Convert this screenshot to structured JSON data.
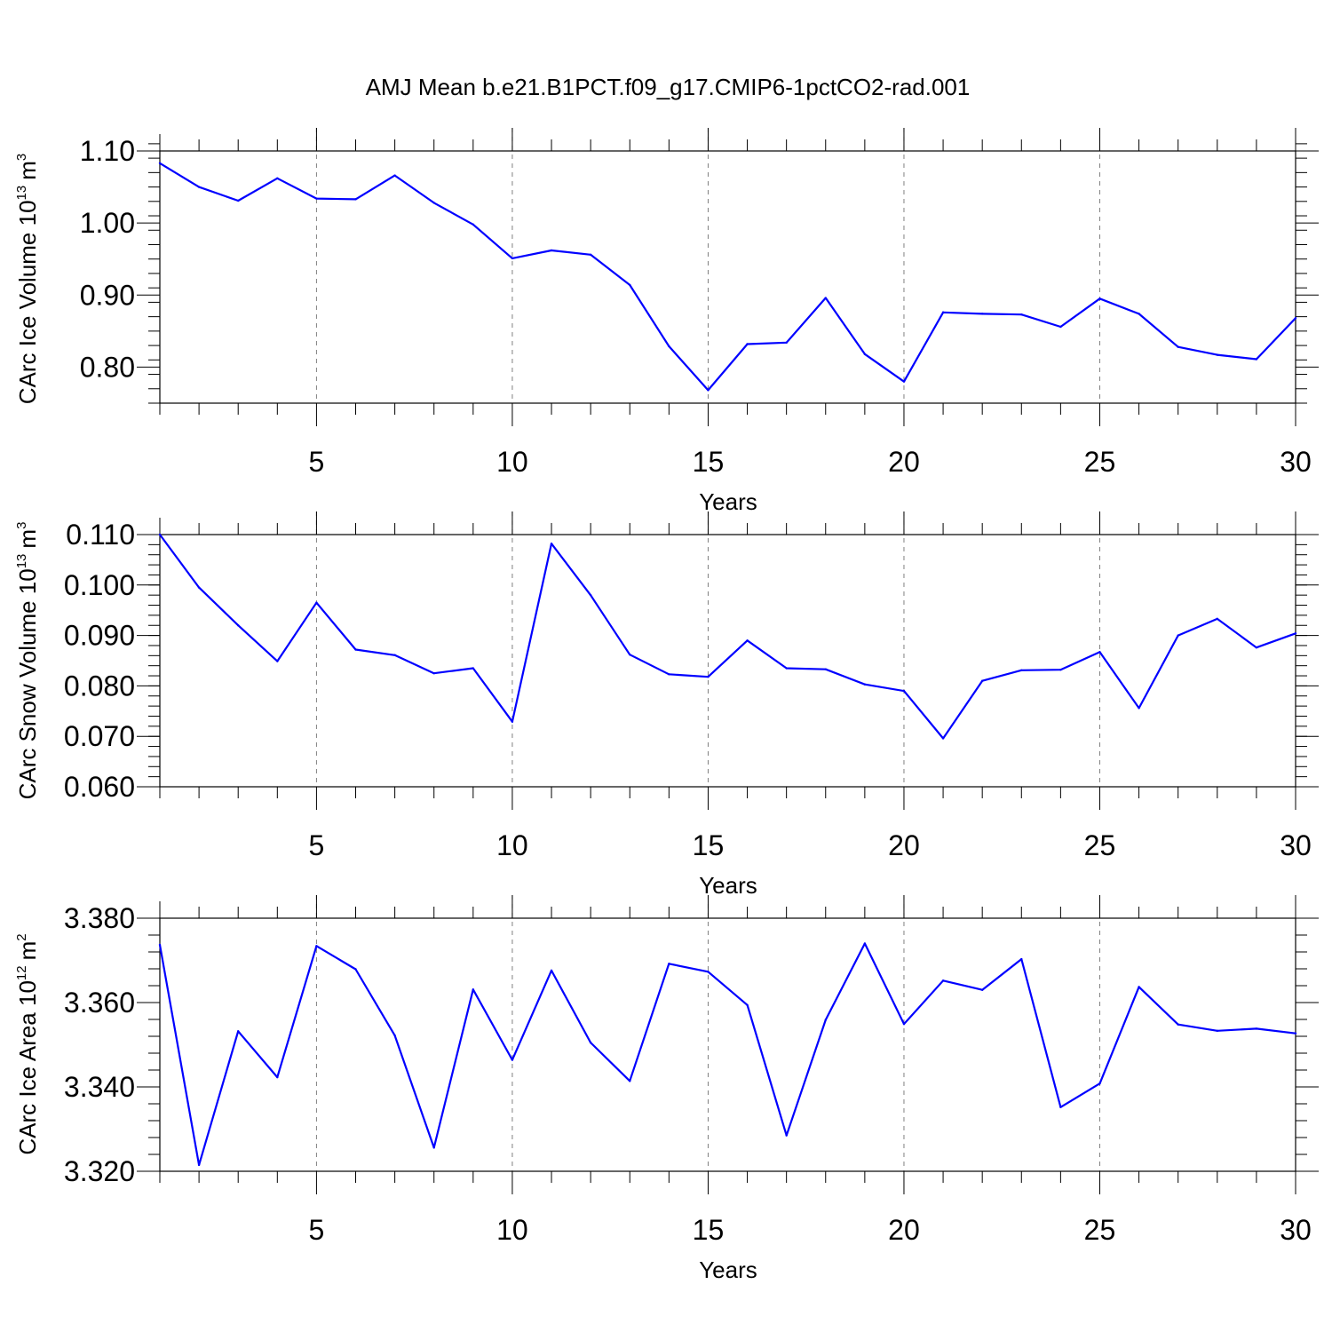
{
  "title": "AMJ Mean b.e21.B1PCT.f09_g17.CMIP6-1pctCO2-rad.001",
  "colors": {
    "line": "#0000ff",
    "grid": "#808080",
    "axes": "#000000"
  },
  "chart_data": [
    {
      "type": "line",
      "ylabel": "CArc Ice Volume 10",
      "ylabel_exponent": "13",
      "ylabel_unit": "m",
      "ylabel_unit_exponent": "3",
      "xlabel": "Years",
      "xlim": [
        1,
        30
      ],
      "ylim": [
        0.75,
        1.1
      ],
      "xticks": [
        5,
        10,
        15,
        20,
        25,
        30
      ],
      "xtick_labels": [
        "5",
        "10",
        "15",
        "20",
        "25",
        "30"
      ],
      "yticks": [
        0.8,
        0.9,
        1.0,
        1.1
      ],
      "ytick_labels": [
        "0.80",
        "0.90",
        "1.00",
        "1.10"
      ],
      "y_minor_step": 0.02,
      "grid": "dashed vertical lines at major x ticks",
      "x": [
        1,
        2,
        3,
        4,
        5,
        6,
        7,
        8,
        9,
        10,
        11,
        12,
        13,
        14,
        15,
        16,
        17,
        18,
        19,
        20,
        21,
        22,
        23,
        24,
        25,
        26,
        27,
        28,
        29,
        30
      ],
      "series": [
        {
          "values": [
            1.083,
            1.05,
            1.031,
            1.062,
            1.034,
            1.033,
            1.066,
            1.028,
            0.998,
            0.951,
            0.962,
            0.956,
            0.914,
            0.829,
            0.768,
            0.832,
            0.834,
            0.896,
            0.818,
            0.78,
            0.876,
            0.874,
            0.873,
            0.856,
            0.895,
            0.874,
            0.828,
            0.817,
            0.811,
            0.868
          ]
        }
      ]
    },
    {
      "type": "line",
      "ylabel": "CArc Snow Volume 10",
      "ylabel_exponent": "13",
      "ylabel_unit": "m",
      "ylabel_unit_exponent": "3",
      "xlabel": "Years",
      "xlim": [
        1,
        30
      ],
      "ylim": [
        0.06,
        0.11
      ],
      "xticks": [
        5,
        10,
        15,
        20,
        25,
        30
      ],
      "xtick_labels": [
        "5",
        "10",
        "15",
        "20",
        "25",
        "30"
      ],
      "yticks": [
        0.06,
        0.07,
        0.08,
        0.09,
        0.1,
        0.11
      ],
      "ytick_labels": [
        "0.060",
        "0.070",
        "0.080",
        "0.090",
        "0.100",
        "0.110"
      ],
      "y_minor_step": 0.002,
      "grid": "dashed vertical lines at major x ticks",
      "x": [
        1,
        2,
        3,
        4,
        5,
        6,
        7,
        8,
        9,
        10,
        11,
        12,
        13,
        14,
        15,
        16,
        17,
        18,
        19,
        20,
        21,
        22,
        23,
        24,
        25,
        26,
        27,
        28,
        29,
        30
      ],
      "series": [
        {
          "values": [
            0.11,
            0.0995,
            0.092,
            0.0849,
            0.0965,
            0.0872,
            0.0861,
            0.0825,
            0.0835,
            0.0729,
            0.1082,
            0.098,
            0.0862,
            0.0823,
            0.0818,
            0.089,
            0.0835,
            0.0833,
            0.0803,
            0.079,
            0.0696,
            0.081,
            0.0831,
            0.0832,
            0.0867,
            0.0756,
            0.09,
            0.0933,
            0.0876,
            0.0904
          ]
        }
      ]
    },
    {
      "type": "line",
      "ylabel": "CArc Ice Area 10",
      "ylabel_exponent": "12",
      "ylabel_unit": "m",
      "ylabel_unit_exponent": "2",
      "xlabel": "Years",
      "xlim": [
        1,
        30
      ],
      "ylim": [
        3.32,
        3.38
      ],
      "xticks": [
        5,
        10,
        15,
        20,
        25,
        30
      ],
      "xtick_labels": [
        "5",
        "10",
        "15",
        "20",
        "25",
        "30"
      ],
      "yticks": [
        3.32,
        3.34,
        3.36,
        3.38
      ],
      "ytick_labels": [
        "3.320",
        "3.340",
        "3.360",
        "3.380"
      ],
      "y_minor_step": 0.004,
      "grid": "dashed vertical lines at major x ticks",
      "x": [
        1,
        2,
        3,
        4,
        5,
        6,
        7,
        8,
        9,
        10,
        11,
        12,
        13,
        14,
        15,
        16,
        17,
        18,
        19,
        20,
        21,
        22,
        23,
        24,
        25,
        26,
        27,
        28,
        29,
        30
      ],
      "series": [
        {
          "values": [
            3.3737,
            3.3215,
            3.3532,
            3.3423,
            3.3734,
            3.3679,
            3.3522,
            3.3256,
            3.3631,
            3.3464,
            3.3676,
            3.3505,
            3.3414,
            3.3692,
            3.3673,
            3.3594,
            3.3285,
            3.3559,
            3.374,
            3.3549,
            3.3652,
            3.363,
            3.3703,
            3.3352,
            3.3408,
            3.3637,
            3.3548,
            3.3533,
            3.3538,
            3.3527
          ]
        }
      ]
    }
  ]
}
